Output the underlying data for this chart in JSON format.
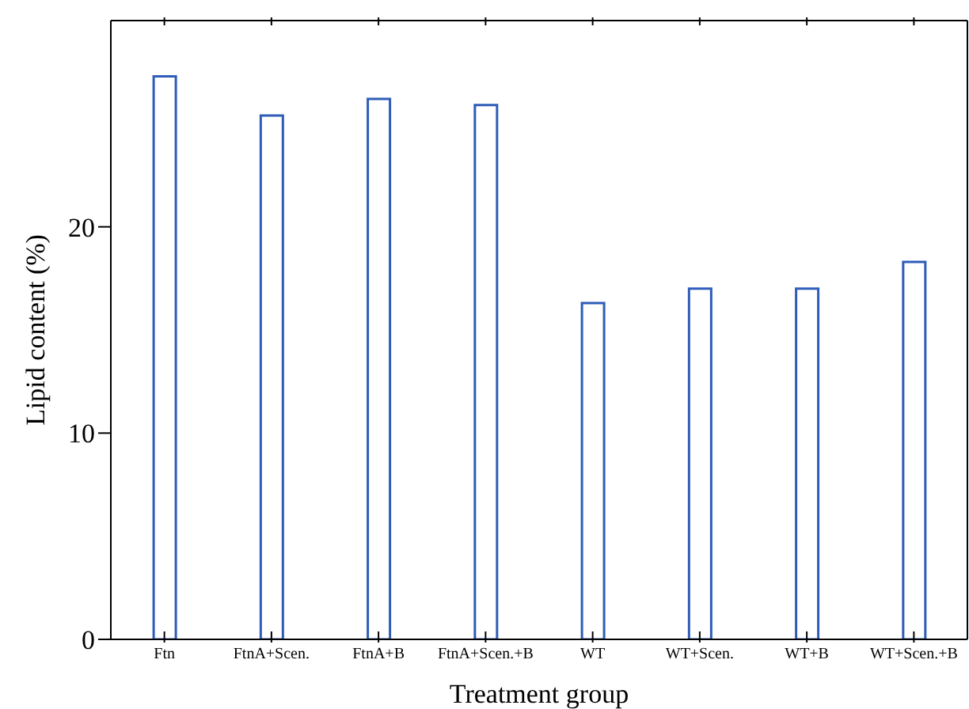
{
  "chart_data": {
    "type": "bar",
    "xlabel": "Treatment group",
    "ylabel": "Lipid content (%)",
    "categories": [
      "Ftn",
      "FtnA+Scen.",
      "FtnA+B",
      "FtnA+Scen.+B",
      "WT",
      "WT+Scen.",
      "WT+B",
      "WT+Scen.+B"
    ],
    "values": [
      27.3,
      25.4,
      26.2,
      25.9,
      16.3,
      17.0,
      17.0,
      18.3
    ],
    "color": "#2e5cb8",
    "ylim": [
      0,
      30
    ],
    "yticks": [
      0,
      10,
      20
    ],
    "grid": false,
    "legend": false
  }
}
